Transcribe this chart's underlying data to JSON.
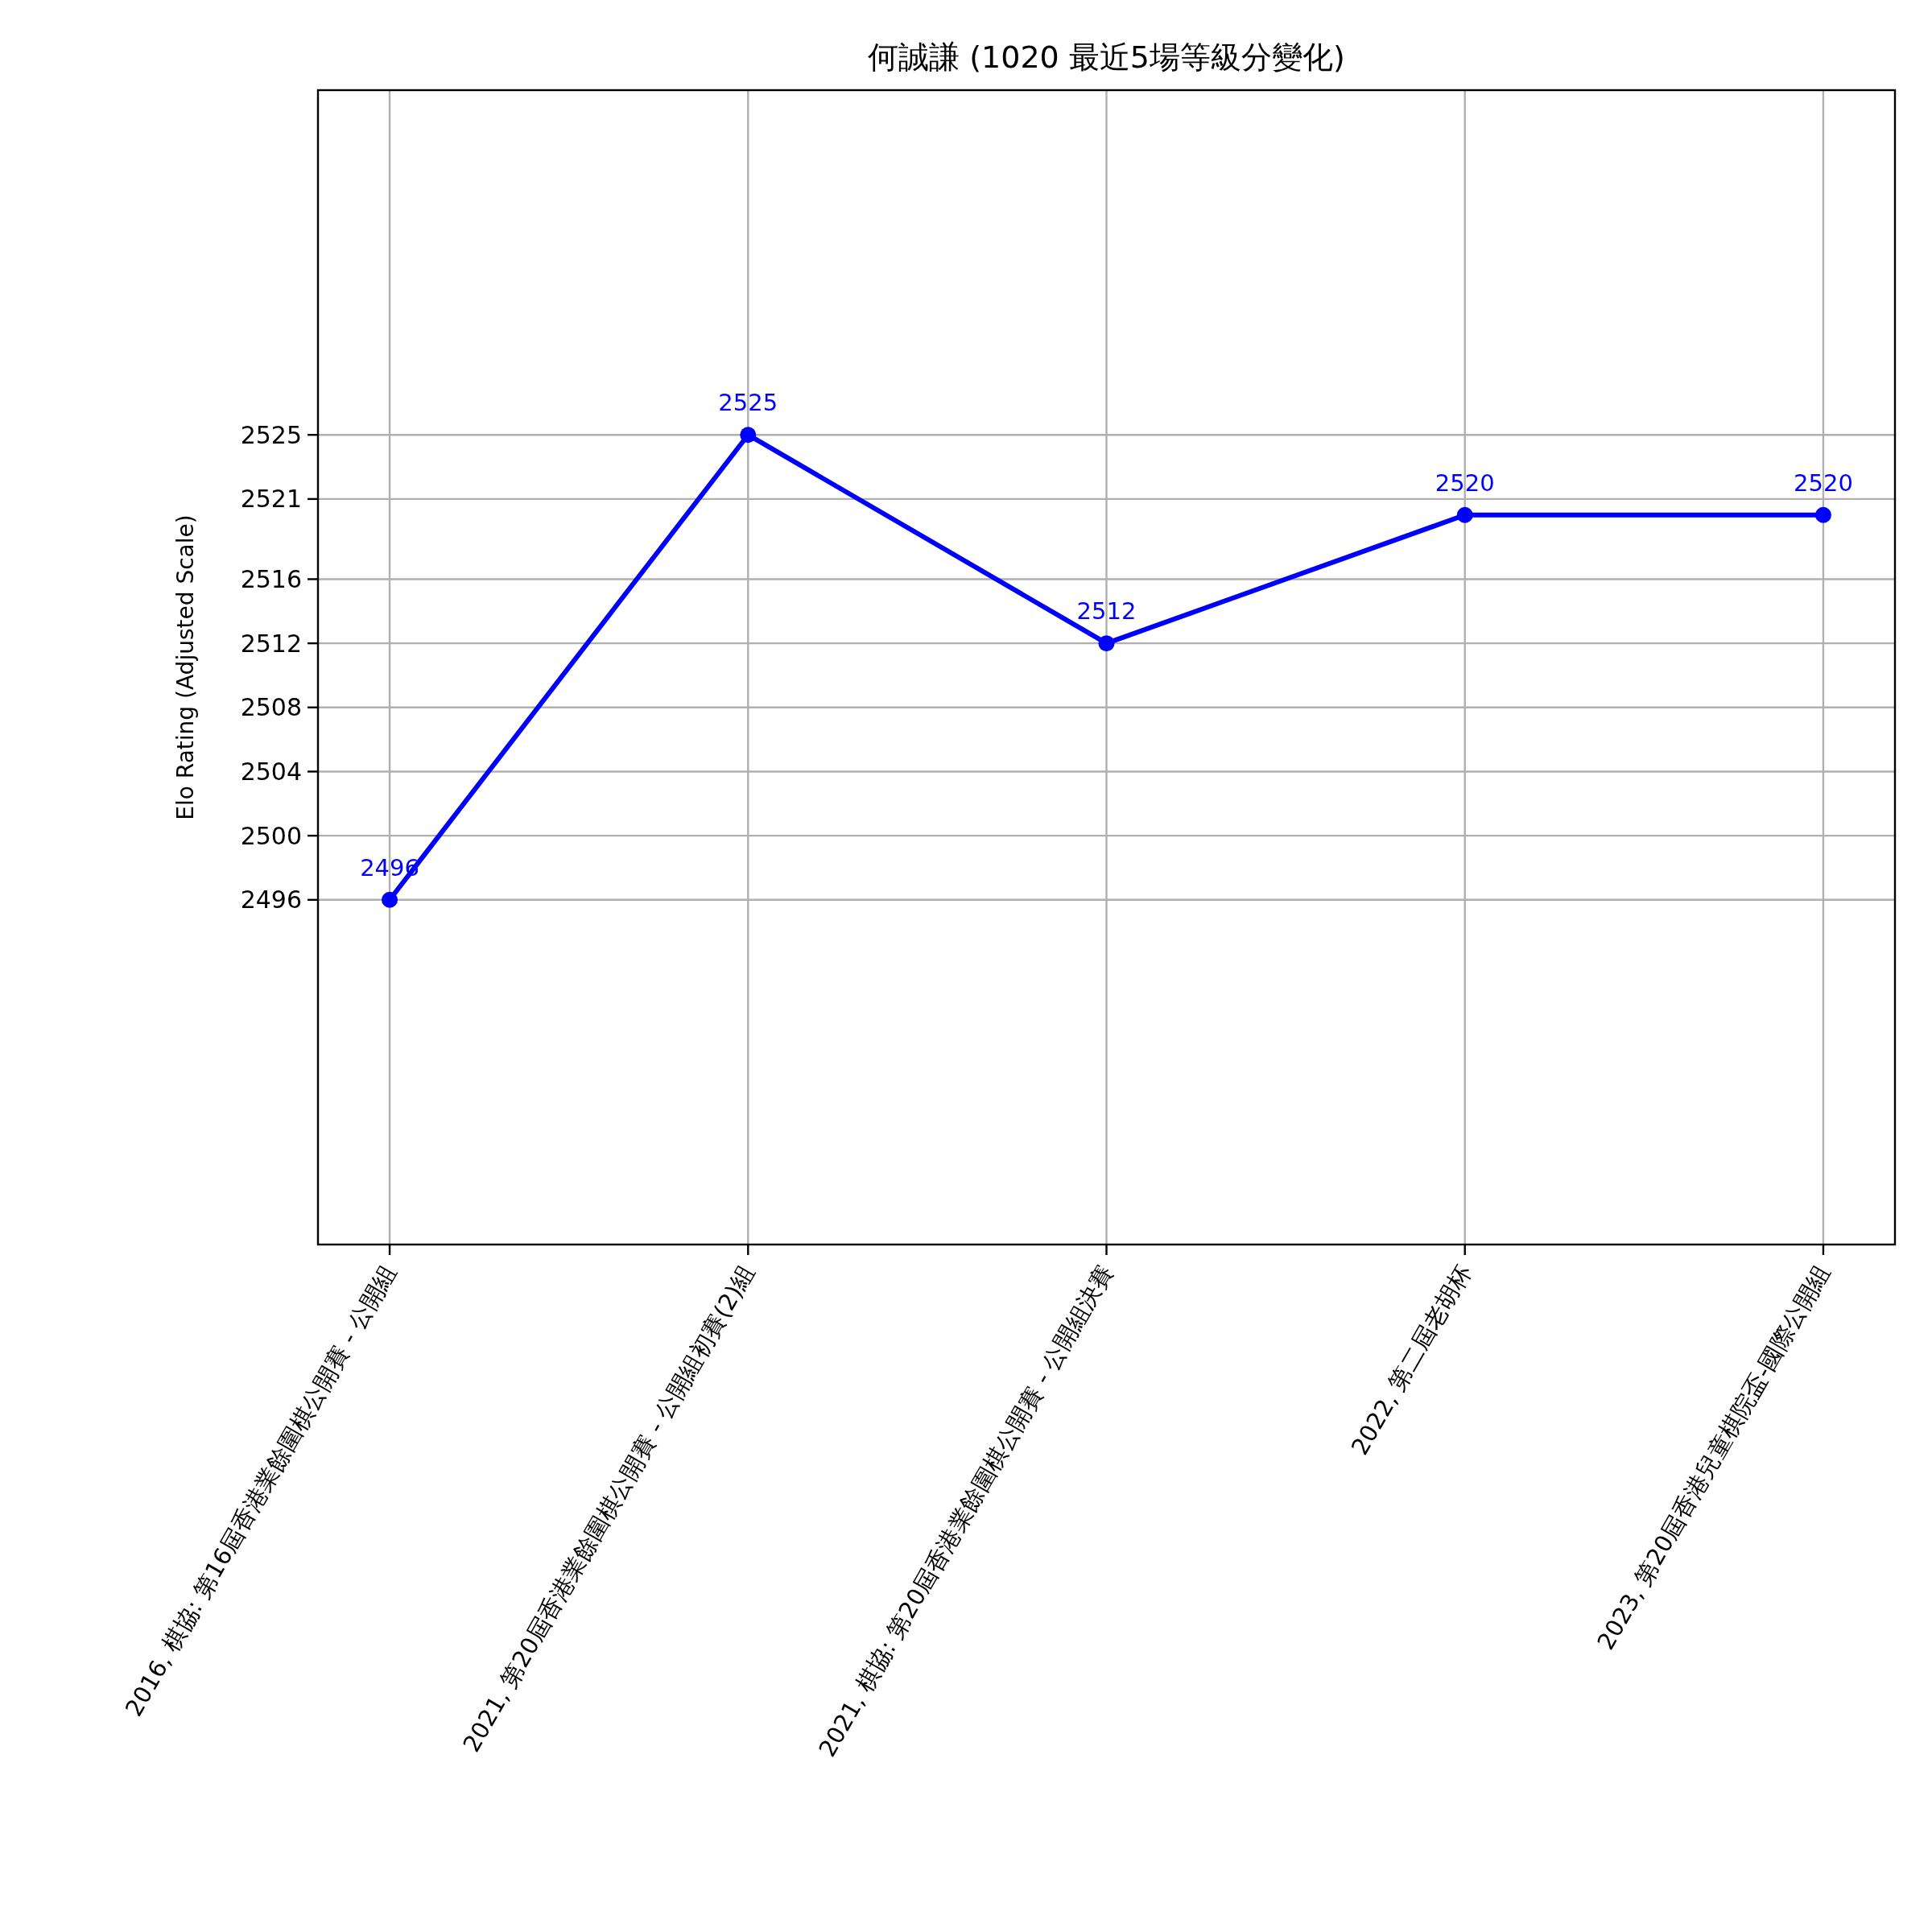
{
  "chart_data": {
    "type": "line",
    "title": "何誠謙 (1020 最近5場等級分變化)",
    "ylabel": "Elo Rating (Adjusted Scale)",
    "categories": [
      "2016, 棋協: 第16屆香港業餘圍棋公開賽 - 公開組",
      "2021, 第20屆香港業餘圍棋公開賽 - 公開組初賽(2)組",
      "2021, 棋協: 第20屆香港業餘圍棋公開賽 - 公開組決賽",
      "2022, 第二屆老胡杯",
      "2023, 第20屆香港兒童棋院盃-國際公開組"
    ],
    "series": [
      {
        "color": "#0000ff",
        "values": [
          2496,
          2525,
          2512,
          2520,
          2520
        ]
      }
    ],
    "ylim": [
      2474.5,
      2546.5
    ],
    "yticks": [
      2496,
      2500,
      2504,
      2508,
      2512,
      2516,
      2521,
      2525
    ],
    "grid": true,
    "marker": "circle",
    "line_style": "solid",
    "data_labels": true
  }
}
